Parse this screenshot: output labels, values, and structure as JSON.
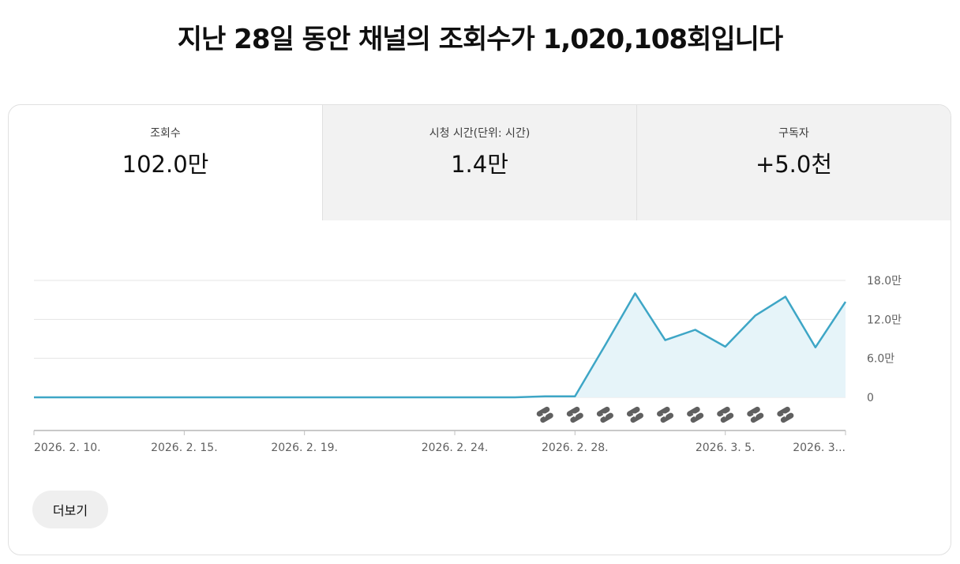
{
  "headline": "지난 28일 동안 채널의 조회수가 1,020,108회입니다",
  "tabs": [
    {
      "label": "조회수",
      "value": "102.0만"
    },
    {
      "label": "시청 시간(단위: 시간)",
      "value": "1.4만"
    },
    {
      "label": "구독자",
      "value": "+5.0천"
    }
  ],
  "colors": {
    "line": "#3ea6c6",
    "fill": "#e6f4f9",
    "marker": "#606060"
  },
  "chart_data": {
    "type": "area",
    "y_ticks": [
      {
        "value": 180000,
        "label": "18.0만"
      },
      {
        "value": 120000,
        "label": "12.0만"
      },
      {
        "value": 60000,
        "label": "6.0만"
      },
      {
        "value": 0,
        "label": "0"
      }
    ],
    "ylim": [
      0,
      180000
    ],
    "x_ticks": [
      {
        "day": 0,
        "label": "2026. 2. 10."
      },
      {
        "day": 5,
        "label": "2026. 2. 15."
      },
      {
        "day": 9,
        "label": "2026. 2. 19."
      },
      {
        "day": 14,
        "label": "2026. 2. 24."
      },
      {
        "day": 18,
        "label": "2026. 2. 28."
      },
      {
        "day": 23,
        "label": "2026. 3. 5."
      },
      {
        "day": 27,
        "label": "2026. 3..."
      }
    ],
    "series": [
      {
        "values": [
          0,
          0,
          0,
          0,
          0,
          0,
          0,
          0,
          0,
          0,
          0,
          0,
          0,
          0,
          0,
          0,
          0,
          1500,
          1500,
          80000,
          160000,
          88000,
          104000,
          78000,
          126000,
          155000,
          77000,
          147000
        ]
      }
    ],
    "shorts_marker_days": [
      17,
      18,
      19,
      20,
      21,
      22,
      23,
      24,
      25
    ],
    "grid": true
  },
  "more_button": {
    "label": "더보기"
  }
}
